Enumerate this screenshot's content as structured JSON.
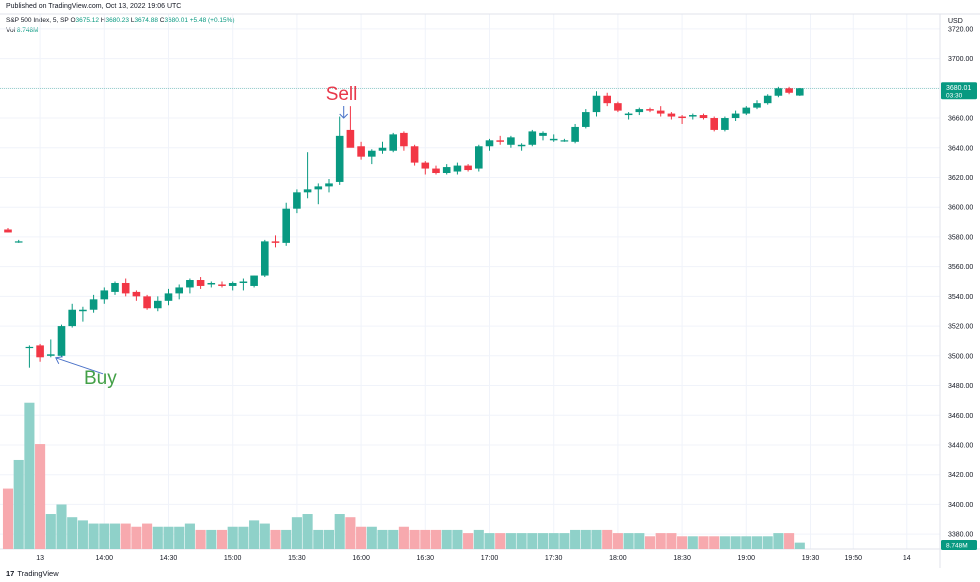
{
  "header": {
    "published": "Published on TradingView.com, Oct 13, 2022 19:06 UTC",
    "symbol": "S&P 500 Index, 5, SP",
    "ohlc": [
      {
        "key": "O",
        "value": "3675.12"
      },
      {
        "key": "H",
        "value": "3680.23"
      },
      {
        "key": "L",
        "value": "3674.88"
      },
      {
        "key": "C",
        "value": "3680.01"
      }
    ],
    "change": "+5.48 (+0.15%)",
    "volume_label": "Vol",
    "volume_value": "8.748M"
  },
  "price_axis": {
    "currency": "USD",
    "last_price": "3680.01",
    "countdown": "03:30",
    "volume_badge": "8.748M"
  },
  "annotations": {
    "sell_label": "Sell",
    "buy_label": "Buy"
  },
  "brand": "TradingView",
  "colors": {
    "up": "#089981",
    "down": "#f23645",
    "vol_up": "#8fd1c9",
    "vol_down": "#f7a9ae",
    "sell": "#e8384a",
    "buy": "#43a047",
    "arrow": "#4a72c8",
    "grid": "#f0f3fa",
    "last_line": "#089981"
  },
  "chart_data": {
    "type": "candlestick",
    "y_range": [
      3370,
      3730
    ],
    "y_ticks": [
      3380,
      3400,
      3420,
      3440,
      3460,
      3480,
      3500,
      3520,
      3540,
      3560,
      3580,
      3600,
      3620,
      3640,
      3660,
      3680,
      3700,
      3720
    ],
    "x_tick_labels": [
      "13",
      "14:00",
      "14:30",
      "15:00",
      "15:30",
      "16:00",
      "16:30",
      "17:00",
      "17:30",
      "18:00",
      "18:30",
      "19:00",
      "19:30",
      "19:50",
      "14"
    ],
    "candles": [
      {
        "o": 3585,
        "h": 3586,
        "l": 3583,
        "c": 3583
      },
      {
        "o": 3577,
        "h": 3578,
        "l": 3576,
        "c": 3577
      },
      {
        "o": 3506,
        "h": 3507,
        "l": 3492,
        "c": 3506
      },
      {
        "o": 3507,
        "h": 3508,
        "l": 3496,
        "c": 3499
      },
      {
        "o": 3500,
        "h": 3511,
        "l": 3499,
        "c": 3501
      },
      {
        "o": 3500,
        "h": 3521,
        "l": 3499,
        "c": 3520
      },
      {
        "o": 3520,
        "h": 3535,
        "l": 3519,
        "c": 3531
      },
      {
        "o": 3530,
        "h": 3533,
        "l": 3523,
        "c": 3531
      },
      {
        "o": 3531,
        "h": 3541,
        "l": 3529,
        "c": 3538
      },
      {
        "o": 3538,
        "h": 3546,
        "l": 3535,
        "c": 3544
      },
      {
        "o": 3543,
        "h": 3550,
        "l": 3541,
        "c": 3549
      },
      {
        "o": 3549,
        "h": 3552,
        "l": 3540,
        "c": 3542
      },
      {
        "o": 3543,
        "h": 3544,
        "l": 3537,
        "c": 3540
      },
      {
        "o": 3540,
        "h": 3541,
        "l": 3531,
        "c": 3532
      },
      {
        "o": 3532,
        "h": 3540,
        "l": 3530,
        "c": 3537
      },
      {
        "o": 3537,
        "h": 3545,
        "l": 3534,
        "c": 3542
      },
      {
        "o": 3542,
        "h": 3548,
        "l": 3538,
        "c": 3546
      },
      {
        "o": 3546,
        "h": 3552,
        "l": 3542,
        "c": 3551
      },
      {
        "o": 3551,
        "h": 3553,
        "l": 3545,
        "c": 3547
      },
      {
        "o": 3548,
        "h": 3550,
        "l": 3546,
        "c": 3549
      },
      {
        "o": 3548,
        "h": 3550,
        "l": 3546,
        "c": 3547
      },
      {
        "o": 3547,
        "h": 3550,
        "l": 3544,
        "c": 3549
      },
      {
        "o": 3549,
        "h": 3552,
        "l": 3544,
        "c": 3550
      },
      {
        "o": 3547,
        "h": 3554,
        "l": 3546,
        "c": 3554
      },
      {
        "o": 3554,
        "h": 3578,
        "l": 3553,
        "c": 3577
      },
      {
        "o": 3577,
        "h": 3581,
        "l": 3573,
        "c": 3576
      },
      {
        "o": 3576,
        "h": 3603,
        "l": 3574,
        "c": 3599
      },
      {
        "o": 3599,
        "h": 3612,
        "l": 3596,
        "c": 3610
      },
      {
        "o": 3610,
        "h": 3637,
        "l": 3606,
        "c": 3612
      },
      {
        "o": 3612,
        "h": 3616,
        "l": 3602,
        "c": 3614
      },
      {
        "o": 3614,
        "h": 3619,
        "l": 3610,
        "c": 3616
      },
      {
        "o": 3617,
        "h": 3661,
        "l": 3615,
        "c": 3648
      },
      {
        "o": 3652,
        "h": 3668,
        "l": 3641,
        "c": 3640
      },
      {
        "o": 3641,
        "h": 3644,
        "l": 3632,
        "c": 3634
      },
      {
        "o": 3634,
        "h": 3639,
        "l": 3629,
        "c": 3638
      },
      {
        "o": 3638,
        "h": 3644,
        "l": 3636,
        "c": 3640
      },
      {
        "o": 3638,
        "h": 3650,
        "l": 3637,
        "c": 3649
      },
      {
        "o": 3650,
        "h": 3651,
        "l": 3638,
        "c": 3641
      },
      {
        "o": 3641,
        "h": 3642,
        "l": 3628,
        "c": 3630
      },
      {
        "o": 3630,
        "h": 3631,
        "l": 3622,
        "c": 3626
      },
      {
        "o": 3626,
        "h": 3628,
        "l": 3622,
        "c": 3623
      },
      {
        "o": 3623,
        "h": 3629,
        "l": 3622,
        "c": 3627
      },
      {
        "o": 3624,
        "h": 3630,
        "l": 3622,
        "c": 3628
      },
      {
        "o": 3628,
        "h": 3629,
        "l": 3624,
        "c": 3625
      },
      {
        "o": 3626,
        "h": 3642,
        "l": 3624,
        "c": 3641
      },
      {
        "o": 3641,
        "h": 3646,
        "l": 3638,
        "c": 3645
      },
      {
        "o": 3645,
        "h": 3648,
        "l": 3642,
        "c": 3644
      },
      {
        "o": 3642,
        "h": 3648,
        "l": 3640,
        "c": 3647
      },
      {
        "o": 3641,
        "h": 3643,
        "l": 3638,
        "c": 3642
      },
      {
        "o": 3642,
        "h": 3652,
        "l": 3641,
        "c": 3651
      },
      {
        "o": 3648,
        "h": 3651,
        "l": 3645,
        "c": 3650
      },
      {
        "o": 3645,
        "h": 3649,
        "l": 3644,
        "c": 3646
      },
      {
        "o": 3645,
        "h": 3646,
        "l": 3644,
        "c": 3645
      },
      {
        "o": 3644,
        "h": 3656,
        "l": 3643,
        "c": 3654
      },
      {
        "o": 3654,
        "h": 3666,
        "l": 3653,
        "c": 3664
      },
      {
        "o": 3664,
        "h": 3678,
        "l": 3661,
        "c": 3675
      },
      {
        "o": 3675,
        "h": 3677,
        "l": 3668,
        "c": 3670
      },
      {
        "o": 3670,
        "h": 3671,
        "l": 3664,
        "c": 3665
      },
      {
        "o": 3662,
        "h": 3664,
        "l": 3659,
        "c": 3663
      },
      {
        "o": 3664,
        "h": 3667,
        "l": 3662,
        "c": 3666
      },
      {
        "o": 3666,
        "h": 3667,
        "l": 3664,
        "c": 3665
      },
      {
        "o": 3665,
        "h": 3668,
        "l": 3661,
        "c": 3663
      },
      {
        "o": 3663,
        "h": 3664,
        "l": 3659,
        "c": 3661
      },
      {
        "o": 3661,
        "h": 3662,
        "l": 3656,
        "c": 3660
      },
      {
        "o": 3661,
        "h": 3663,
        "l": 3659,
        "c": 3662
      },
      {
        "o": 3662,
        "h": 3663,
        "l": 3659,
        "c": 3660
      },
      {
        "o": 3660,
        "h": 3661,
        "l": 3651,
        "c": 3652
      },
      {
        "o": 3652,
        "h": 3661,
        "l": 3651,
        "c": 3660
      },
      {
        "o": 3660,
        "h": 3665,
        "l": 3658,
        "c": 3663
      },
      {
        "o": 3663,
        "h": 3668,
        "l": 3662,
        "c": 3667
      },
      {
        "o": 3667,
        "h": 3672,
        "l": 3666,
        "c": 3670
      },
      {
        "o": 3670,
        "h": 3676,
        "l": 3669,
        "c": 3675
      },
      {
        "o": 3675,
        "h": 3681,
        "l": 3674,
        "c": 3680
      },
      {
        "o": 3680,
        "h": 3681,
        "l": 3676,
        "c": 3677
      },
      {
        "o": 3675.12,
        "h": 3680.23,
        "l": 3674.88,
        "c": 3680.01
      }
    ],
    "volume_pct": [
      19,
      28,
      46,
      33,
      11,
      14,
      10,
      9,
      8,
      8,
      8,
      8,
      7,
      8,
      7,
      7,
      7,
      8,
      6,
      6,
      6,
      7,
      7,
      9,
      8,
      6,
      6,
      10,
      11,
      6,
      6,
      11,
      10,
      7,
      7,
      6,
      6,
      7,
      6,
      6,
      6,
      6,
      6,
      5,
      6,
      5,
      5,
      5,
      5,
      5,
      5,
      5,
      5,
      6,
      6,
      6,
      6,
      5,
      5,
      5,
      4,
      5,
      5,
      4,
      4,
      4,
      4,
      4,
      4,
      4,
      4,
      4,
      5,
      5,
      2
    ]
  }
}
